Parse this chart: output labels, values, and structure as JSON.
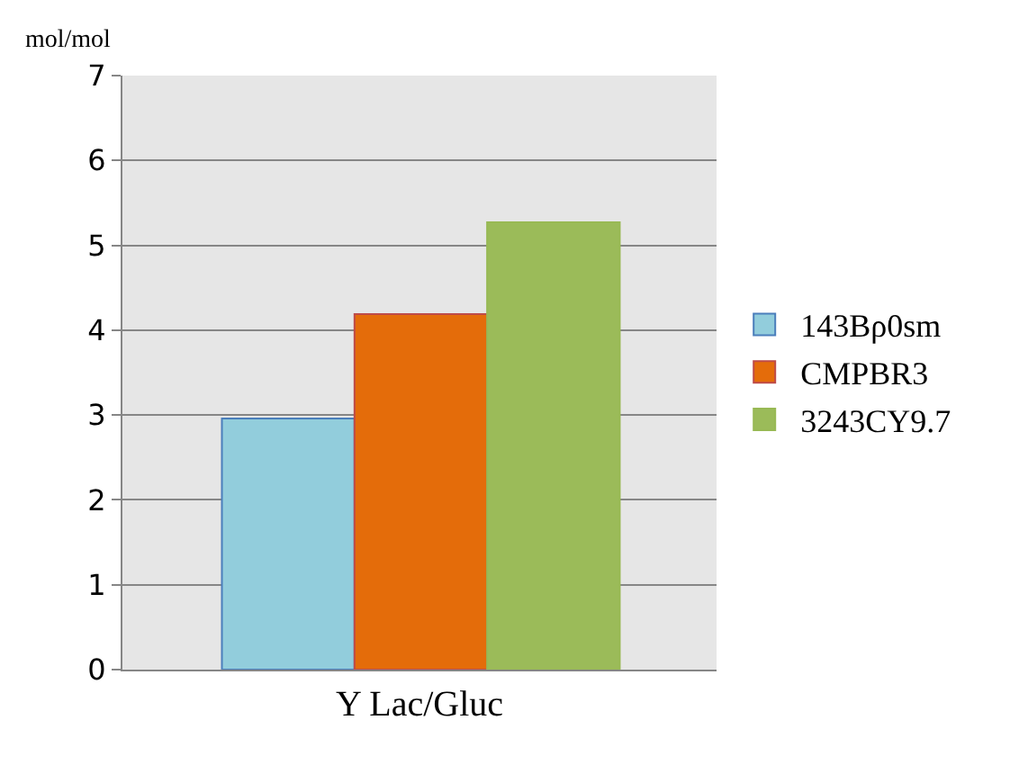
{
  "chart_data": {
    "type": "bar",
    "xlabel": "Y Lac/Gluc",
    "ylabel": "mol/mol",
    "categories": [
      null,
      null,
      null
    ],
    "series": [
      {
        "name": "143Bρ0sm",
        "color": "#92cddc",
        "values": [
          2.96,
          null,
          null
        ]
      },
      {
        "name": "CMPBR3",
        "color": "#e46c0a",
        "values": [
          null,
          4.19,
          null
        ]
      },
      {
        "name": "3243CY9.7",
        "color": "#9bbb59",
        "values": [
          null,
          null,
          5.27
        ]
      }
    ],
    "ylim": [
      0,
      7
    ],
    "yticks": [
      0,
      1,
      2,
      3,
      4,
      5,
      6,
      7
    ],
    "grid": "y",
    "legend": "right"
  }
}
